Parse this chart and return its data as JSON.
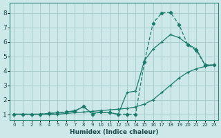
{
  "xlabel": "Humidex (Indice chaleur)",
  "bg_color": "#cce8e8",
  "grid_color": "#aacccc",
  "line_color": "#1a7a6a",
  "xlim": [
    -0.5,
    23.5
  ],
  "ylim": [
    0.6,
    8.7
  ],
  "xticks": [
    0,
    1,
    2,
    3,
    4,
    5,
    6,
    7,
    8,
    9,
    10,
    11,
    12,
    13,
    14,
    15,
    16,
    17,
    18,
    19,
    20,
    21,
    22,
    23
  ],
  "yticks": [
    1,
    2,
    3,
    4,
    5,
    6,
    7,
    8
  ],
  "line1_x": [
    0,
    1,
    2,
    3,
    4,
    5,
    6,
    7,
    8,
    9,
    10,
    11,
    12,
    13,
    14,
    15,
    16,
    17,
    18,
    19,
    20,
    21,
    22,
    23
  ],
  "line1_y": [
    1.0,
    1.0,
    1.0,
    1.0,
    1.0,
    1.0,
    1.05,
    1.1,
    1.15,
    1.2,
    1.25,
    1.3,
    1.35,
    1.4,
    1.5,
    1.7,
    2.0,
    2.5,
    3.0,
    3.5,
    3.9,
    4.15,
    4.3,
    4.4
  ],
  "line2_x": [
    0,
    1,
    2,
    3,
    4,
    5,
    6,
    7,
    8,
    9,
    10,
    11,
    12,
    13,
    14,
    15,
    16,
    17,
    18,
    19,
    20,
    21,
    22,
    23
  ],
  "line2_y": [
    1.0,
    1.0,
    1.0,
    1.0,
    1.05,
    1.1,
    1.15,
    1.2,
    1.55,
    1.0,
    1.15,
    1.1,
    1.0,
    1.0,
    1.0,
    4.6,
    7.3,
    8.0,
    8.05,
    7.2,
    5.8,
    5.4,
    4.4,
    4.4
  ],
  "line3_x": [
    0,
    1,
    2,
    3,
    4,
    5,
    6,
    7,
    8,
    9,
    10,
    11,
    12,
    13,
    14,
    15,
    16,
    17,
    18,
    19,
    20,
    21,
    22,
    23
  ],
  "line3_y": [
    1.0,
    1.0,
    1.0,
    1.0,
    1.05,
    1.1,
    1.15,
    1.25,
    1.5,
    1.05,
    1.15,
    1.1,
    1.0,
    2.5,
    2.6,
    4.7,
    5.5,
    6.0,
    6.5,
    6.3,
    5.85,
    5.5,
    4.4,
    4.4
  ]
}
